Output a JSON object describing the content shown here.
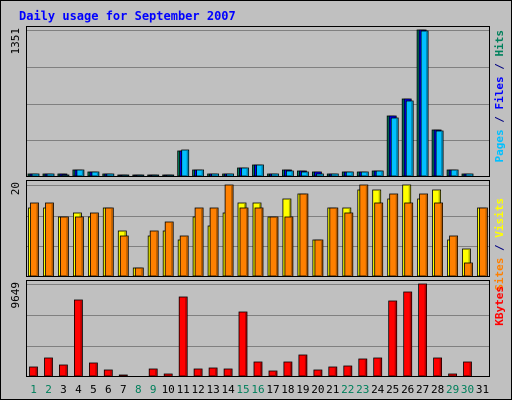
{
  "chart_data": {
    "type": "bar",
    "title": "Daily usage for September 2007",
    "categories": [
      "1",
      "2",
      "3",
      "4",
      "5",
      "6",
      "7",
      "8",
      "9",
      "10",
      "11",
      "12",
      "13",
      "14",
      "15",
      "16",
      "17",
      "18",
      "19",
      "20",
      "21",
      "22",
      "23",
      "24",
      "25",
      "26",
      "27",
      "28",
      "29",
      "30",
      "31"
    ],
    "weekend_days": [
      1,
      2,
      8,
      9,
      15,
      16,
      22,
      23,
      29,
      30
    ],
    "panels": [
      {
        "id": "hits",
        "ymax_label": "1351",
        "ymax": 1351,
        "side_labels": [
          {
            "text": "Pages",
            "color": "#00c0ff"
          },
          {
            "text": " / ",
            "color": "#000080"
          },
          {
            "text": "Files",
            "color": "#0000ff"
          },
          {
            "text": " / ",
            "color": "#000080"
          },
          {
            "text": "Hits",
            "color": "#00805c"
          }
        ],
        "series": [
          {
            "name": "Hits",
            "color": "#00805c",
            "values": [
              32,
              32,
              32,
              65,
              43,
              32,
              22,
              22,
              22,
              22,
              240,
              65,
              32,
              32,
              86,
              108,
              32,
              65,
              54,
              43,
              32,
              43,
              43,
              54,
              562,
              713,
              1351,
              432,
              65,
              32,
              0
            ]
          },
          {
            "name": "Files",
            "color": "#0000ff",
            "values": [
              32,
              32,
              32,
              65,
              43,
              32,
              22,
              22,
              22,
              22,
              240,
              65,
              32,
              32,
              86,
              108,
              32,
              65,
              54,
              43,
              32,
              43,
              43,
              54,
              562,
              713,
              1351,
              432,
              65,
              32,
              0
            ]
          },
          {
            "name": "Pages",
            "color": "#00c0ff",
            "values": [
              32,
              32,
              22,
              65,
              43,
              32,
              22,
              22,
              22,
              22,
              250,
              65,
              32,
              32,
              86,
              108,
              32,
              54,
              43,
              32,
              32,
              43,
              43,
              54,
              540,
              702,
              1340,
              421,
              65,
              32,
              0
            ]
          }
        ]
      },
      {
        "id": "visits",
        "ymax_label": "20",
        "ymax": 20,
        "side_labels": [
          {
            "text": "Sites",
            "color": "#ff8000"
          },
          {
            "text": " / ",
            "color": "#000080"
          },
          {
            "text": "Visits",
            "color": "#ffff00"
          }
        ],
        "series": [
          {
            "name": "Visits",
            "color": "#ffff00",
            "values": [
              15,
              15,
              13,
              14,
              13,
              15,
              10,
              2,
              9,
              10,
              8,
              13,
              11,
              14,
              16,
              16,
              13,
              17,
              18,
              8,
              15,
              15,
              19,
              19,
              17,
              20,
              17,
              19,
              8,
              6,
              15
            ]
          },
          {
            "name": "Sites",
            "color": "#ff8000",
            "values": [
              16,
              16,
              13,
              13,
              14,
              15,
              9,
              2,
              10,
              12,
              9,
              15,
              15,
              20,
              15,
              15,
              13,
              13,
              18,
              8,
              15,
              14,
              20,
              16,
              18,
              16,
              18,
              16,
              9,
              3,
              15
            ]
          }
        ]
      },
      {
        "id": "kbytes",
        "ymax_label": "9649",
        "ymax": 9649,
        "side_labels": [
          {
            "text": "KBytes",
            "color": "#ff0000"
          }
        ],
        "series": [
          {
            "name": "KBytes",
            "color": "#ff0000",
            "values": [
              1000,
              2000,
              1200,
              8000,
              1500,
              700,
              200,
              0,
              800,
              300,
              8300,
              800,
              900,
              800,
              6700,
              1600,
              600,
              1600,
              2300,
              700,
              1000,
              1100,
              1900,
              2000,
              7900,
              8800,
              9649,
              2000,
              300,
              1600,
              0
            ]
          }
        ]
      }
    ]
  }
}
